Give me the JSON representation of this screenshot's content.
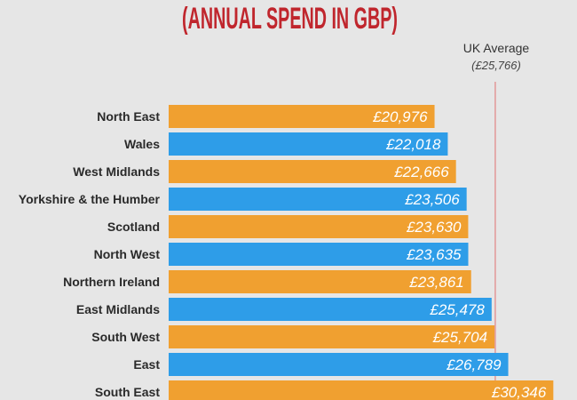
{
  "title": "(ANNUAL SPEND IN GBP)",
  "colors": {
    "background": "#e6e6e6",
    "title": "#c0262d",
    "orange": "#f0a030",
    "blue": "#2e9de8",
    "average_line": "#e07070"
  },
  "chart_data": {
    "type": "bar",
    "orientation": "horizontal",
    "title": "(ANNUAL SPEND IN GBP)",
    "categories": [
      "North East",
      "Wales",
      "West Midlands",
      "Yorkshire & the Humber",
      "Scotland",
      "North West",
      "Northern Ireland",
      "East Midlands",
      "South West",
      "East",
      "South East"
    ],
    "values": [
      20976,
      22018,
      22666,
      23506,
      23630,
      23635,
      23861,
      25478,
      25704,
      26789,
      30346
    ],
    "data_labels": [
      "£20,976",
      "£22,018",
      "£22,666",
      "£23,506",
      "£23,630",
      "£23,635",
      "£23,861",
      "£25,478",
      "£25,704",
      "£26,789",
      "£30,346"
    ],
    "bar_colors": [
      "orange",
      "blue",
      "orange",
      "blue",
      "orange",
      "blue",
      "orange",
      "blue",
      "orange",
      "blue",
      "orange"
    ],
    "reference_line": {
      "label": "UK Average",
      "value_label": "(£25,766)",
      "value": 25766
    },
    "xlim": [
      0,
      32000
    ],
    "grid": false
  }
}
